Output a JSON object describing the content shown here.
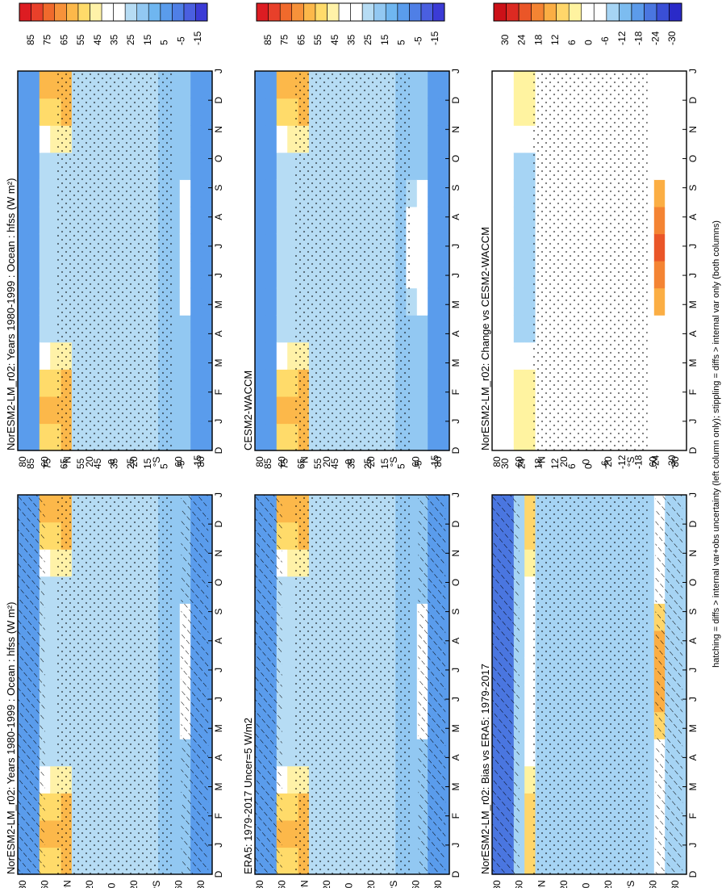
{
  "footnote": "hatching = diffs > internal var+obs uncertainty (left column only); stippling = diffs > internal var only (both columns)",
  "colors": {
    "clim": [
      "#3b3bd6",
      "#4a5fe0",
      "#4f7fe6",
      "#5a9cec",
      "#6fb6f0",
      "#92c8f2",
      "#b6dcf4",
      "#ffffff",
      "#ffffff",
      "#fff2a8",
      "#ffdb6a",
      "#fcb84a",
      "#f7923a",
      "#f06a2c",
      "#e8402a",
      "#dd1c22"
    ],
    "diff": [
      "#2a2ac8",
      "#3a4fd6",
      "#4a76e0",
      "#5c9bea",
      "#7cbcf0",
      "#a6d4f4",
      "#ffffff",
      "#ffffff",
      "#fff3a0",
      "#ffd66a",
      "#fbae44",
      "#f48433",
      "#ea5628",
      "#dc2a22",
      "#cc1118"
    ]
  },
  "chart_data": [
    {
      "type": "heatmap",
      "title": "NorESM2-LM_r02: Years 1980-1999 : Ocean : hfss (W m²)",
      "xlabel": "",
      "ylabel": "",
      "x_ticks": [
        "D",
        "J",
        "F",
        "M",
        "A",
        "M",
        "J",
        "J",
        "A",
        "S",
        "O",
        "N",
        "D",
        "J"
      ],
      "y_ticks": [
        "80",
        "60",
        "°N",
        "20",
        "0",
        "20",
        "°S",
        "60",
        "80"
      ],
      "colorbar": {
        "labels": [
          "85",
          "75",
          "65",
          "55",
          "45",
          "35",
          "25",
          "15",
          "5",
          "-5",
          "-15"
        ],
        "range": [
          -20,
          90
        ],
        "units": "W m-2"
      }
    },
    {
      "type": "heatmap",
      "title": "NorESM2-LM_r02: Years 1980-1999 : Ocean : hfss (W m²)",
      "xlabel": "",
      "ylabel": "",
      "x_ticks": [
        "D",
        "J",
        "F",
        "M",
        "A",
        "M",
        "J",
        "J",
        "A",
        "S",
        "O",
        "N",
        "D",
        "J"
      ],
      "y_ticks": [
        "80",
        "60",
        "°N",
        "20",
        "0",
        "20",
        "°S",
        "60",
        "80"
      ],
      "colorbar": {
        "labels": [
          "85",
          "75",
          "65",
          "55",
          "45",
          "35",
          "25",
          "15",
          "5",
          "-5",
          "-15"
        ],
        "range": [
          -20,
          90
        ],
        "units": "W m-2"
      }
    },
    {
      "type": "heatmap",
      "title": "ERA5: 1979-2017 Uncer=5 W/m2",
      "xlabel": "",
      "ylabel": "",
      "x_ticks": [
        "D",
        "J",
        "F",
        "M",
        "A",
        "M",
        "J",
        "J",
        "A",
        "S",
        "O",
        "N",
        "D",
        "J"
      ],
      "y_ticks": [
        "80",
        "60",
        "°N",
        "20",
        "0",
        "20",
        "°S",
        "60",
        "80"
      ],
      "colorbar": {
        "labels": [
          "85",
          "75",
          "65",
          "55",
          "45",
          "35",
          "25",
          "15",
          "5",
          "-5",
          "-15"
        ],
        "range": [
          -20,
          90
        ],
        "units": "W m-2"
      }
    },
    {
      "type": "heatmap",
      "title": "CESM2-WACCM",
      "xlabel": "",
      "ylabel": "",
      "x_ticks": [
        "D",
        "J",
        "F",
        "M",
        "A",
        "M",
        "J",
        "J",
        "A",
        "S",
        "O",
        "N",
        "D",
        "J"
      ],
      "y_ticks": [
        "80",
        "60",
        "°N",
        "20",
        "0",
        "20",
        "°S",
        "60",
        "80"
      ],
      "colorbar": {
        "labels": [
          "85",
          "75",
          "65",
          "55",
          "45",
          "35",
          "25",
          "15",
          "5",
          "-5",
          "-15"
        ],
        "range": [
          -20,
          90
        ],
        "units": "W m-2"
      }
    },
    {
      "type": "heatmap",
      "title": "NorESM2-LM_r02: Bias vs ERA5: 1979-2017",
      "xlabel": "",
      "ylabel": "",
      "x_ticks": [
        "D",
        "J",
        "F",
        "M",
        "A",
        "M",
        "J",
        "J",
        "A",
        "S",
        "O",
        "N",
        "D",
        "J"
      ],
      "y_ticks": [
        "80",
        "60",
        "°N",
        "20",
        "0",
        "20",
        "°S",
        "60",
        "80"
      ],
      "colorbar": {
        "labels": [
          "30",
          "24",
          "18",
          "12",
          "6",
          "0",
          "-6",
          "-12",
          "-18",
          "-24",
          "-30"
        ],
        "range": [
          -33,
          33
        ],
        "units": "W m-2"
      }
    },
    {
      "type": "heatmap",
      "title": "NorESM2-LM_r02: Change vs CESM2-WACCM",
      "xlabel": "",
      "ylabel": "",
      "x_ticks": [
        "D",
        "J",
        "F",
        "M",
        "A",
        "M",
        "J",
        "J",
        "A",
        "S",
        "O",
        "N",
        "D",
        "J"
      ],
      "y_ticks": [
        "80",
        "60",
        "°N",
        "20",
        "0",
        "20",
        "°S",
        "60",
        "80"
      ],
      "colorbar": {
        "labels": [
          "30",
          "24",
          "18",
          "12",
          "6",
          "0",
          "-6",
          "-12",
          "-18",
          "-24",
          "-30"
        ],
        "range": [
          -33,
          33
        ],
        "units": "W m-2"
      }
    }
  ]
}
